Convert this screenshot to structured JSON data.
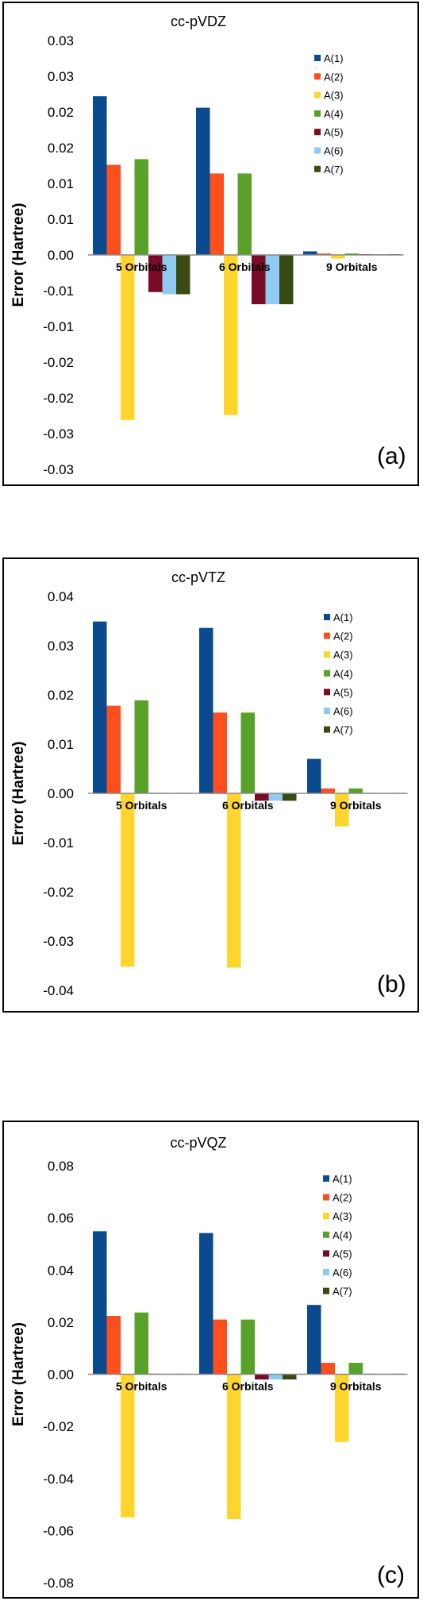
{
  "colors": {
    "A(1)": "#0a4a8e",
    "A(2)": "#fd4f1d",
    "A(3)": "#fdd52b",
    "A(4)": "#58a22a",
    "A(5)": "#7a0b26",
    "A(6)": "#8fcbf0",
    "A(7)": "#394a12"
  },
  "chart_data": [
    {
      "type": "bar",
      "title": "cc-pVDZ",
      "panel_label": "(a)",
      "ylabel": "Error (Hartree)",
      "xlabel": "",
      "categories": [
        "5 Orbitals",
        "6 Orbitals",
        "9 Orbitals"
      ],
      "ylim": [
        -0.03,
        0.03
      ],
      "yticks": [
        -0.03,
        -0.025,
        -0.02,
        -0.015,
        -0.01,
        -0.005,
        0.0,
        0.005,
        0.01,
        0.015,
        0.02,
        0.025,
        0.03
      ],
      "ytick_labels": [
        "-0.03",
        "-0.03",
        "-0.02",
        "-0.02",
        "-0.01",
        "-0.01",
        "0.00",
        "0.01",
        "0.01",
        "0.02",
        "0.02",
        "0.03",
        "0.03"
      ],
      "legend_position": "top-right",
      "series": [
        {
          "name": "A(1)",
          "values": [
            0.0222,
            0.0206,
            0.0005
          ]
        },
        {
          "name": "A(2)",
          "values": [
            0.0126,
            0.0114,
            0.0002
          ]
        },
        {
          "name": "A(3)",
          "values": [
            -0.0231,
            -0.0224,
            -0.0005
          ]
        },
        {
          "name": "A(4)",
          "values": [
            0.0134,
            0.0114,
            0.0002
          ]
        },
        {
          "name": "A(5)",
          "values": [
            -0.0052,
            -0.0069,
            0.0001
          ]
        },
        {
          "name": "A(6)",
          "values": [
            -0.0055,
            -0.0069,
            0.0001
          ]
        },
        {
          "name": "A(7)",
          "values": [
            -0.0055,
            -0.0069,
            0.0001
          ]
        }
      ]
    },
    {
      "type": "bar",
      "title": "cc-pVTZ",
      "panel_label": "(b)",
      "ylabel": "Error (Hartree)",
      "xlabel": "",
      "categories": [
        "5 Orbitals",
        "6 Orbitals",
        "9 Orbitals"
      ],
      "ylim": [
        -0.04,
        0.04
      ],
      "yticks": [
        -0.04,
        -0.03,
        -0.02,
        -0.01,
        0.0,
        0.01,
        0.02,
        0.03,
        0.04
      ],
      "ytick_labels": [
        "-0.04",
        "-0.03",
        "-0.02",
        "-0.01",
        "0.00",
        "0.01",
        "0.02",
        "0.03",
        "0.04"
      ],
      "legend_position": "top-right",
      "series": [
        {
          "name": "A(1)",
          "values": [
            0.0349,
            0.0336,
            0.007
          ]
        },
        {
          "name": "A(2)",
          "values": [
            0.0178,
            0.0164,
            0.001
          ]
        },
        {
          "name": "A(3)",
          "values": [
            -0.0352,
            -0.0354,
            -0.0067
          ]
        },
        {
          "name": "A(4)",
          "values": [
            0.0189,
            0.0164,
            0.001
          ]
        },
        {
          "name": "A(5)",
          "values": [
            0.0001,
            -0.0015,
            0.0001
          ]
        },
        {
          "name": "A(6)",
          "values": [
            0.0001,
            -0.0015,
            0.0001
          ]
        },
        {
          "name": "A(7)",
          "values": [
            0.0001,
            -0.0015,
            0.0001
          ]
        }
      ]
    },
    {
      "type": "bar",
      "title": "cc-pVQZ",
      "panel_label": "(c)",
      "ylabel": "Error (Hartree)",
      "xlabel": "",
      "categories": [
        "5 Orbitals",
        "6 Orbitals",
        "9 Orbitals"
      ],
      "ylim": [
        -0.08,
        0.08
      ],
      "yticks": [
        -0.08,
        -0.06,
        -0.04,
        -0.02,
        0.0,
        0.02,
        0.04,
        0.06,
        0.08
      ],
      "ytick_labels": [
        "-0.08",
        "-0.06",
        "-0.04",
        "-0.02",
        "0.00",
        "0.02",
        "0.04",
        "0.06",
        "0.08"
      ],
      "legend_position": "top-right",
      "series": [
        {
          "name": "A(1)",
          "values": [
            0.0549,
            0.0542,
            0.0266
          ]
        },
        {
          "name": "A(2)",
          "values": [
            0.0224,
            0.021,
            0.0044
          ]
        },
        {
          "name": "A(3)",
          "values": [
            -0.0549,
            -0.0556,
            -0.026
          ]
        },
        {
          "name": "A(4)",
          "values": [
            0.0237,
            0.021,
            0.0044
          ]
        },
        {
          "name": "A(5)",
          "values": [
            0.0002,
            -0.002,
            0.0002
          ]
        },
        {
          "name": "A(6)",
          "values": [
            0.0002,
            -0.002,
            0.0002
          ]
        },
        {
          "name": "A(7)",
          "values": [
            0.0002,
            -0.002,
            0.0002
          ]
        }
      ]
    }
  ]
}
